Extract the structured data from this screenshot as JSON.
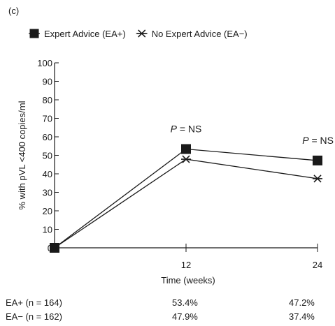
{
  "panel_label": "(c)",
  "chart_data": {
    "type": "line",
    "title": "",
    "xlabel": "Time (weeks)",
    "ylabel": "% with pVL <400 copies/ml",
    "x": [
      0,
      12,
      24
    ],
    "x_tick_labels": [
      "",
      "12",
      "24"
    ],
    "ylim": [
      0,
      100
    ],
    "y_ticks": [
      0,
      10,
      20,
      30,
      40,
      50,
      60,
      70,
      80,
      90,
      100
    ],
    "grid": false,
    "legend_position": "top-left",
    "series": [
      {
        "name": "Expert Advice (EA+)",
        "marker": "square",
        "color": "#1a1a1a",
        "values": [
          0,
          53.4,
          47.2
        ]
      },
      {
        "name": "No Expert Advice (EA−)",
        "marker": "asterisk",
        "color": "#1a1a1a",
        "values": [
          0,
          47.9,
          37.4
        ]
      }
    ],
    "annotations": [
      {
        "x": 12,
        "italic": "P",
        "text": " = NS"
      },
      {
        "x": 24,
        "italic": "P",
        "text": " = NS"
      }
    ],
    "table": {
      "rows": [
        {
          "label": "EA+ (n = 164)",
          "values": [
            "53.4%",
            "47.2%"
          ]
        },
        {
          "label": "EA− (n = 162)",
          "values": [
            "47.9%",
            "37.4%"
          ]
        }
      ]
    }
  }
}
